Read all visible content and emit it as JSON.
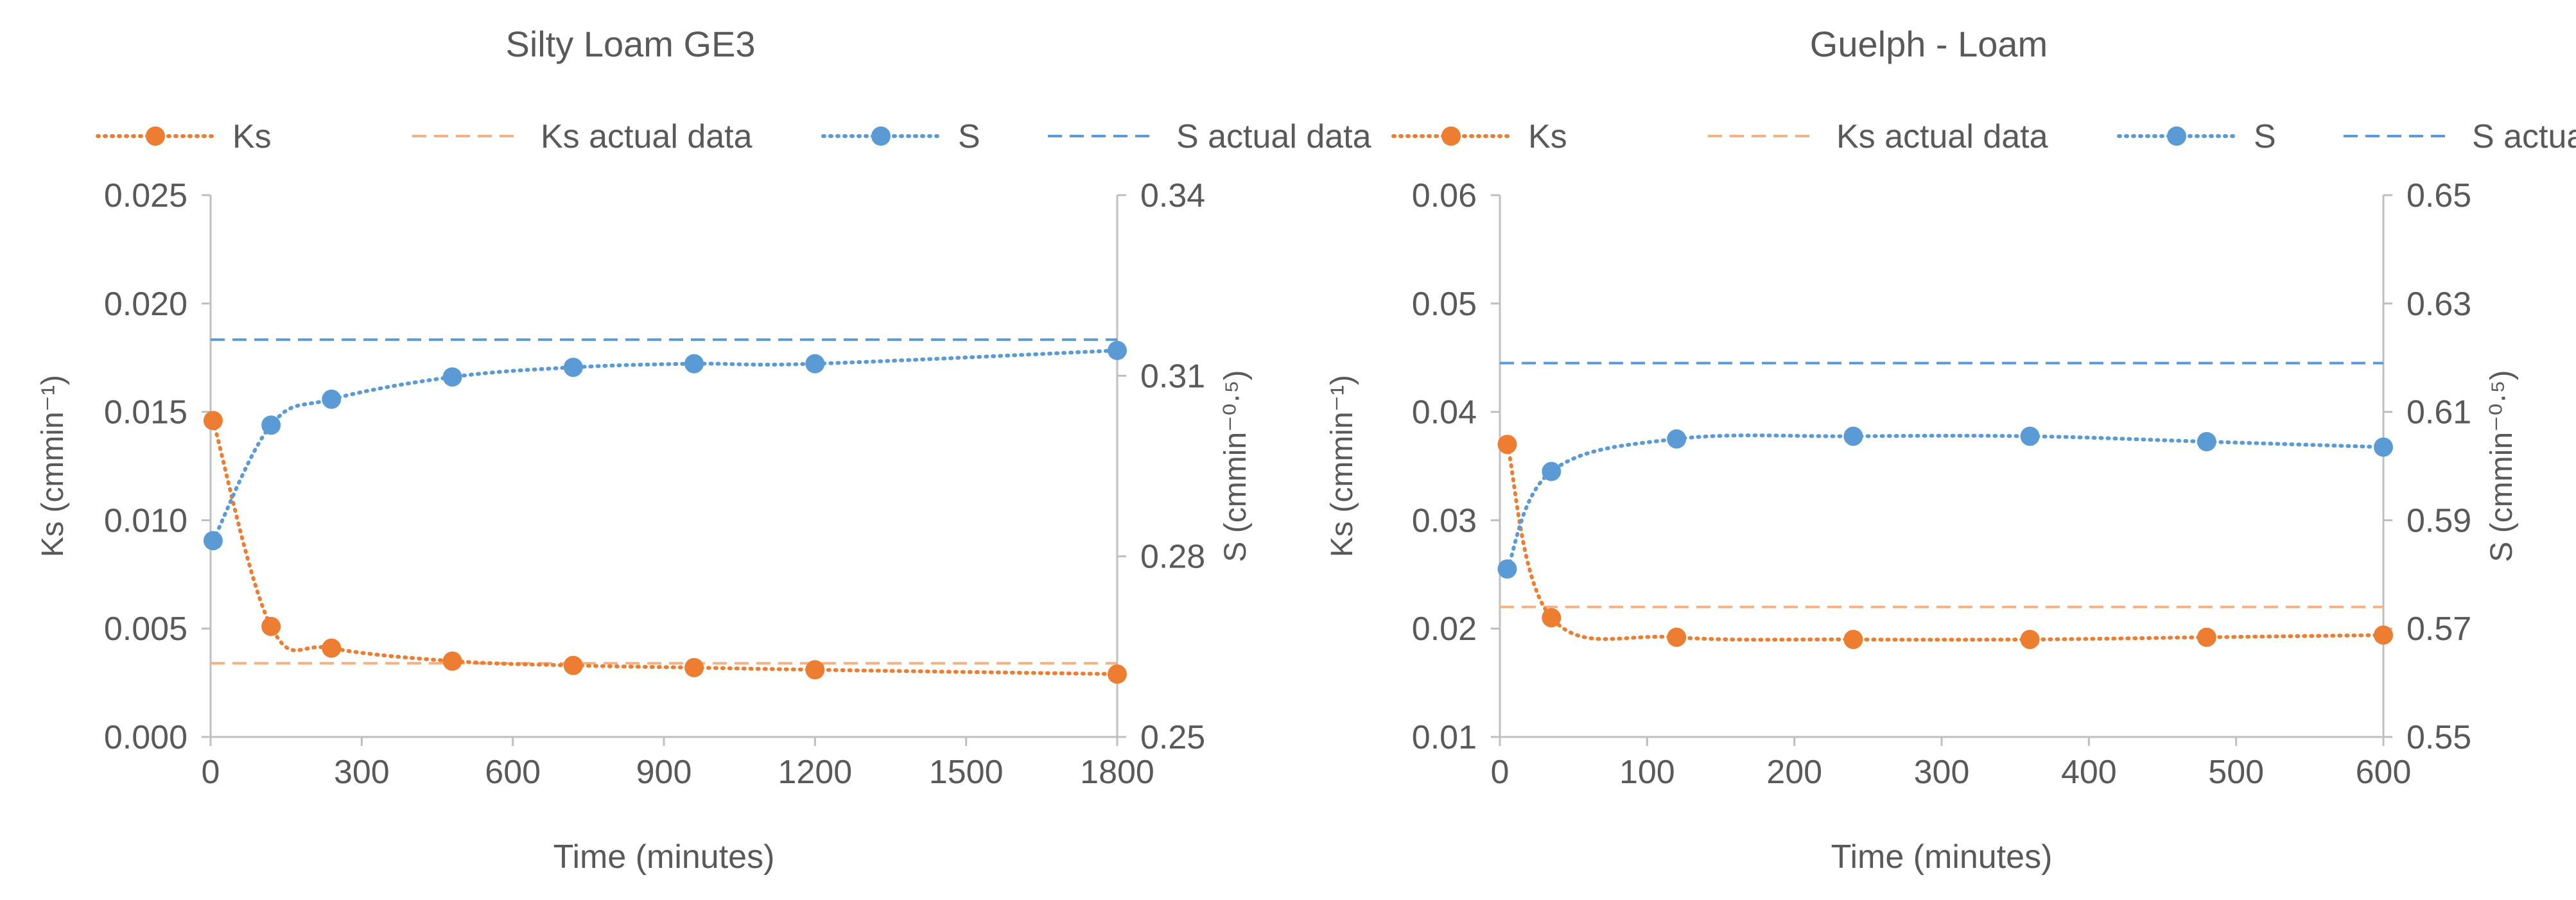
{
  "colors": {
    "ks": "#ED7D31",
    "ks_actual": "#F4B183",
    "s": "#5B9BD5",
    "s_actual": "#5B9BD5",
    "axis": "#BFBFBF",
    "text": "#595959"
  },
  "chart_data": [
    {
      "type": "line",
      "title": "Silty Loam GE3",
      "xlabel": "Time (minutes)",
      "ylabel": "Ks (cmmin⁻¹)",
      "y2label": "S (cmmin⁻⁰·⁵)",
      "xlim": [
        0,
        1800
      ],
      "xticks": [
        0,
        300,
        600,
        900,
        1200,
        1500,
        1800
      ],
      "xtick_labels": [
        "0",
        "300",
        "600",
        "900",
        "1200",
        "1500",
        "1800"
      ],
      "ylim": [
        0,
        0.025
      ],
      "yticks": [
        0,
        0.005,
        0.01,
        0.015,
        0.02,
        0.025
      ],
      "ytick_labels": [
        "0.000",
        "0.005",
        "0.010",
        "0.015",
        "0.020",
        "0.025"
      ],
      "y2lim": [
        0.25,
        0.34
      ],
      "y2ticks": [
        0.25,
        0.28,
        0.31,
        0.34
      ],
      "y2tick_labels": [
        "0.25",
        "0.28",
        "0.31",
        "0.34"
      ],
      "legend": [
        "Ks",
        "Ks actual data",
        "S",
        "S actual data"
      ],
      "ks": {
        "x": [
          5,
          120,
          240,
          480,
          720,
          960,
          1200,
          1800
        ],
        "y": [
          0.0146,
          0.0051,
          0.0041,
          0.0035,
          0.0033,
          0.0032,
          0.0031,
          0.0029
        ]
      },
      "ks_actual": 0.0034,
      "s": {
        "x": [
          5,
          120,
          240,
          480,
          720,
          960,
          1200,
          1800
        ],
        "y": [
          0.2826,
          0.3018,
          0.3061,
          0.3098,
          0.3114,
          0.312,
          0.312,
          0.3142
        ]
      },
      "s_actual": 0.316
    },
    {
      "type": "line",
      "title": "Guelph - Loam",
      "xlabel": "Time (minutes)",
      "ylabel": "Ks (cmmin⁻¹)",
      "y2label": "S (cmmin⁻⁰·⁵)",
      "xlim": [
        0,
        600
      ],
      "xticks": [
        0,
        100,
        200,
        300,
        400,
        500,
        600
      ],
      "xtick_labels": [
        "0",
        "100",
        "200",
        "300",
        "400",
        "500",
        "600"
      ],
      "ylim": [
        0.01,
        0.06
      ],
      "yticks": [
        0.01,
        0.02,
        0.03,
        0.04,
        0.05,
        0.06
      ],
      "ytick_labels": [
        "0.01",
        "0.02",
        "0.03",
        "0.04",
        "0.05",
        "0.06"
      ],
      "y2lim": [
        0.55,
        0.65
      ],
      "y2ticks": [
        0.55,
        0.57,
        0.59,
        0.61,
        0.63,
        0.65
      ],
      "y2tick_labels": [
        "0.55",
        "0.57",
        "0.59",
        "0.61",
        "0.63",
        "0.65"
      ],
      "legend": [
        "Ks",
        "Ks actual data",
        "S",
        "S actual data"
      ],
      "ks": {
        "x": [
          5,
          35,
          120,
          240,
          360,
          480,
          600
        ],
        "y": [
          0.037,
          0.021,
          0.0192,
          0.019,
          0.019,
          0.0192,
          0.0194
        ]
      },
      "ks_actual": 0.022,
      "s": {
        "x": [
          5,
          35,
          120,
          240,
          360,
          480,
          600
        ],
        "y": [
          0.581,
          0.599,
          0.605,
          0.6055,
          0.6055,
          0.6045,
          0.6035
        ]
      },
      "s_actual": 0.619
    }
  ]
}
